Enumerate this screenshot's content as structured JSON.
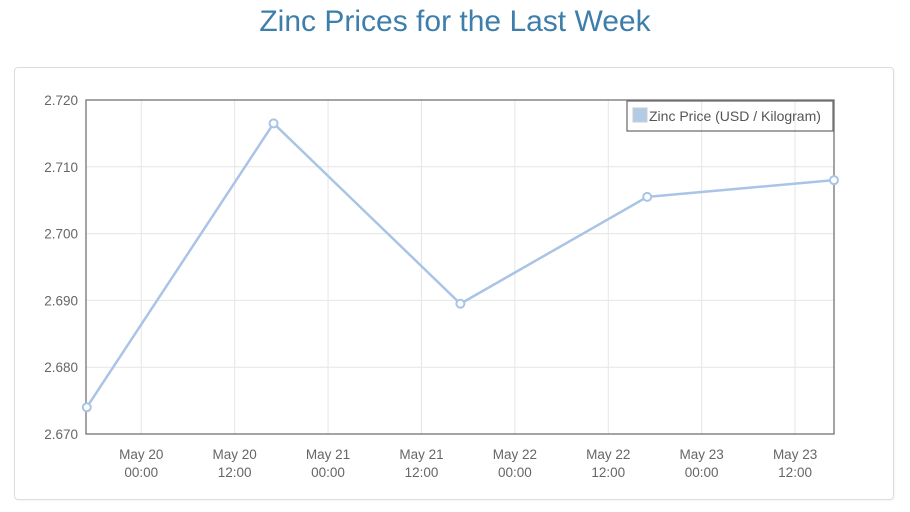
{
  "page": {
    "title": "Zinc Prices for the Last Week"
  },
  "legend": {
    "label": "Zinc Price (USD / Kilogram)",
    "position": "top-right",
    "swatch_color": "#b4cbe8"
  },
  "colors": {
    "title_text": "#3d7eab",
    "series_line": "#a9c4e6",
    "marker_fill": "#ffffff",
    "gridline": "#e6e6e6",
    "plot_frame": "#7d7d7d",
    "axis_text": "#666666",
    "legend_border": "#666666",
    "panel_border": "#dddddd"
  },
  "chart_data": {
    "type": "line",
    "title": "Zinc Prices for the Last Week",
    "xlabel": "",
    "ylabel": "",
    "ylim": [
      2.67,
      2.72
    ],
    "grid": true,
    "legend_position": "top-right",
    "x_axis": {
      "unit": "hours since May 19 00:00 (estimated from tick spacing)",
      "range_hours": [
        16.9,
        113
      ]
    },
    "y_ticks": [
      "2.670",
      "2.680",
      "2.690",
      "2.700",
      "2.710",
      "2.720"
    ],
    "x_ticks": [
      {
        "hour": 24,
        "line1": "May 20",
        "line2": "00:00"
      },
      {
        "hour": 36,
        "line1": "May 20",
        "line2": "12:00"
      },
      {
        "hour": 48,
        "line1": "May 21",
        "line2": "00:00"
      },
      {
        "hour": 60,
        "line1": "May 21",
        "line2": "12:00"
      },
      {
        "hour": 72,
        "line1": "May 22",
        "line2": "00:00"
      },
      {
        "hour": 84,
        "line1": "May 22",
        "line2": "12:00"
      },
      {
        "hour": 96,
        "line1": "May 23",
        "line2": "00:00"
      },
      {
        "hour": 108,
        "line1": "May 23",
        "line2": "12:00"
      }
    ],
    "series": [
      {
        "name": "Zinc Price (USD / Kilogram)",
        "points": [
          {
            "x_hour": 17,
            "x_approx": "May 19 ~17:00",
            "value": 2.674
          },
          {
            "x_hour": 41,
            "x_approx": "May 20 ~17:00",
            "value": 2.7165
          },
          {
            "x_hour": 65,
            "x_approx": "May 21 ~17:00",
            "value": 2.6895
          },
          {
            "x_hour": 89,
            "x_approx": "May 22 ~17:00",
            "value": 2.7055
          },
          {
            "x_hour": 113,
            "x_approx": "May 23 ~17:00",
            "value": 2.708
          }
        ]
      }
    ]
  }
}
